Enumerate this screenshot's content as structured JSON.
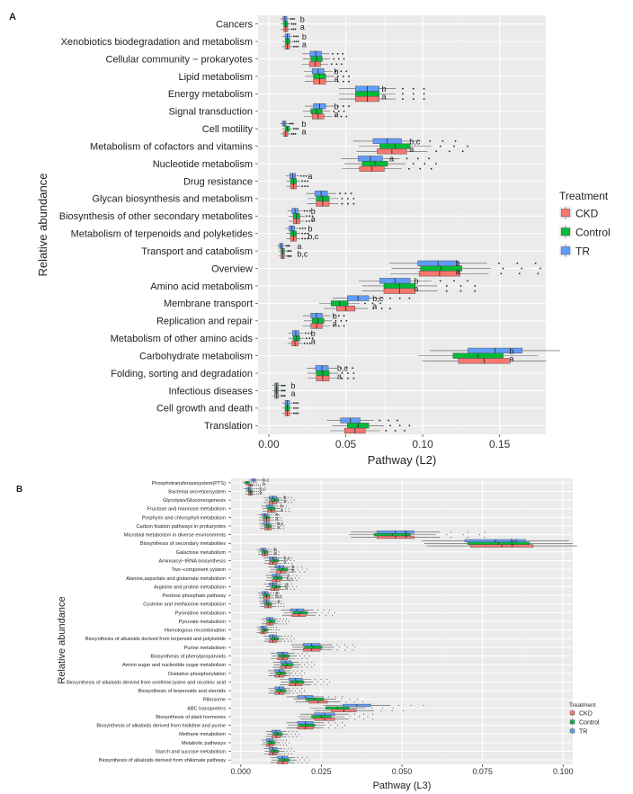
{
  "colors": {
    "panel_bg": "#ebebeb",
    "grid_major": "#ffffff",
    "CKD": "#f8766d",
    "Control": "#00ba38",
    "TR": "#619cff"
  },
  "chart_data": [
    {
      "type": "box",
      "panel_label": "A",
      "xlabel": "Pathway (L2)",
      "ylabel": "Relative abundance",
      "xlim": [
        -0.007,
        0.18
      ],
      "xticks": [
        0.0,
        0.05,
        0.1,
        0.15
      ],
      "xtick_labels": [
        "0.00",
        "0.05",
        "0.10",
        "0.15"
      ],
      "legend": {
        "title": "Treatment",
        "position": "right",
        "entries": [
          "CKD",
          "Control",
          "TR"
        ]
      },
      "categories": [
        "Cancers",
        "Xenobiotics biodegradation and metabolism",
        "Cellular community − prokaryotes",
        "Lipid metabolism",
        "Energy metabolism",
        "Signal transduction",
        "Cell motility",
        "Metabolism of cofactors and vitamins",
        "Nucleotide metabolism",
        "Drug resistance",
        "Glycan biosynthesis and metabolism",
        "Biosynthesis of other secondary metabolites",
        "Metabolism of terpenoids and polyketides",
        "Transport and catabolism",
        "Overview",
        "Amino acid metabolism",
        "Membrane transport",
        "Replication and repair",
        "Metabolism of other amino acids",
        "Carbohydrate metabolism",
        "Folding, sorting and degradation",
        "Infectious diseases",
        "Cell growth and death",
        "Translation"
      ],
      "medians": {
        "TR": [
          0.0105,
          0.012,
          0.0305,
          0.032,
          0.064,
          0.033,
          0.01,
          0.077,
          0.066,
          0.0155,
          0.034,
          0.017,
          0.015,
          0.008,
          0.11,
          0.082,
          0.058,
          0.031,
          0.0175,
          0.147,
          0.0345,
          0.005,
          0.012,
          0.053
        ],
        "Control": [
          0.011,
          0.0122,
          0.031,
          0.033,
          0.064,
          0.031,
          0.012,
          0.082,
          0.069,
          0.016,
          0.035,
          0.018,
          0.016,
          0.009,
          0.112,
          0.085,
          0.046,
          0.032,
          0.018,
          0.136,
          0.035,
          0.005,
          0.012,
          0.058
        ],
        "CKD": [
          0.011,
          0.012,
          0.03,
          0.033,
          0.064,
          0.032,
          0.011,
          0.08,
          0.067,
          0.016,
          0.035,
          0.018,
          0.016,
          0.009,
          0.111,
          0.085,
          0.05,
          0.031,
          0.017,
          0.14,
          0.035,
          0.005,
          0.012,
          0.056
        ]
      },
      "annotations": [
        "b",
        "a",
        "b",
        "a",
        "",
        "",
        "b",
        "a",
        "b",
        "a",
        "b",
        "a",
        "b",
        "a",
        "b,c",
        "a",
        "a",
        "",
        "a",
        "",
        "",
        "",
        "b",
        "a",
        "b",
        "b,c",
        "a",
        "b,c",
        "b",
        "a",
        "b",
        "a",
        "b,c",
        "a",
        "b",
        "a",
        "b",
        "a",
        "b",
        "a",
        "b,c",
        "a",
        "b",
        "a"
      ]
    },
    {
      "type": "box",
      "panel_label": "B",
      "xlabel": "Pathway (L3)",
      "ylabel": "Relative abundance",
      "xlim": [
        -0.003,
        0.103
      ],
      "xticks": [
        0.0,
        0.025,
        0.05,
        0.075,
        0.1
      ],
      "xtick_labels": [
        "0.000",
        "0.025",
        "0.050",
        "0.075",
        "0.100"
      ],
      "legend": {
        "title": "Treatment",
        "position": "right",
        "entries": [
          "CKD",
          "Control",
          "TR"
        ]
      },
      "categories": [
        "Phosphotransferasesystem(PTS)",
        "Bacterial secretionsystem",
        "Glycolysis/Gluconeogenesis",
        "Fructose and mannose metabolism",
        "Porphyrin and chlorophyll metabolism",
        "Carbon fixation pathways in prokaryotes",
        "Microbial metabolism in diverse environments",
        "Biosynthesis of secondary metabolites",
        "Galactose metabolism",
        "Aminoacyl−tRNA biosynthesis",
        "Two−component system",
        "Alanine,aspartate and glutamate metabolism",
        "Arginine and proline metabolism",
        "Pentose phosphate pathway",
        "Cysteine and methionine metabolism",
        "Pyrimidine metabolism",
        "Pyruvate metabolism",
        "Homologous recombination",
        "Biosynthesis of alkaloids derived from terpenoid and polyketide",
        "Purine metabolism",
        "Biosynthesis of phenylpropanoids",
        "Amino sugar and nucleotide sugar metabolism",
        "Oxidative phosphorylation",
        "Biosynthesis of alkaloids derived from ornithine,lysine and nicotinic acid",
        "Biosynthesis of terpenoids and steroids",
        "Ribosome",
        "ABC transporters",
        "Biosynthesis of plant hormones",
        "Biosynthesis of alkaloids derived from histidine and purine",
        "Methane metabolism",
        "Metabolic pathways",
        "Starch and sucrose metabolism",
        "Biosynthesis of alkaloids derived from shikimate pathway"
      ],
      "medians": {
        "TR": [
          0.004,
          0.0025,
          0.01,
          0.009,
          0.0075,
          0.008,
          0.048,
          0.079,
          0.007,
          0.01,
          0.012,
          0.011,
          0.01,
          0.0075,
          0.008,
          0.0175,
          0.009,
          0.007,
          0.01,
          0.022,
          0.013,
          0.014,
          0.012,
          0.017,
          0.012,
          0.02,
          0.036,
          0.026,
          0.02,
          0.011,
          0.009,
          0.01,
          0.013
        ],
        "Control": [
          0.002,
          0.003,
          0.0105,
          0.0095,
          0.008,
          0.0085,
          0.047,
          0.08,
          0.0075,
          0.0105,
          0.013,
          0.0115,
          0.011,
          0.008,
          0.0085,
          0.0185,
          0.0095,
          0.0075,
          0.0105,
          0.0225,
          0.0135,
          0.0145,
          0.0125,
          0.0175,
          0.0125,
          0.023,
          0.03,
          0.025,
          0.0205,
          0.0115,
          0.0095,
          0.0105,
          0.0135
        ],
        "CKD": [
          0.003,
          0.003,
          0.01,
          0.0095,
          0.008,
          0.0085,
          0.048,
          0.081,
          0.0075,
          0.01,
          0.0125,
          0.011,
          0.0105,
          0.008,
          0.0085,
          0.018,
          0.009,
          0.007,
          0.01,
          0.022,
          0.013,
          0.014,
          0.012,
          0.017,
          0.012,
          0.024,
          0.032,
          0.026,
          0.02,
          0.011,
          0.009,
          0.01,
          0.013
        ]
      },
      "annotations": [
        "b,c",
        "b",
        "b,c",
        "a",
        "b",
        "a",
        "b",
        "a",
        "b",
        "a",
        "b,c",
        "a",
        "b",
        "a",
        "b,c",
        "a",
        "b",
        "a",
        "b,c",
        "a",
        "b",
        "b",
        "a",
        "b,c",
        "a",
        "b",
        "a",
        "b,c",
        "a"
      ]
    }
  ]
}
